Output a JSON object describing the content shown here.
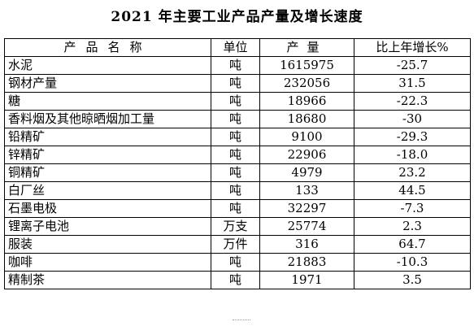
{
  "title": "2021 年主要工业产品产量及增长速度",
  "table": {
    "headers": {
      "product": "产品名称",
      "unit": "单位",
      "quantity": "产量",
      "growth": "比上年增长%"
    },
    "rows": [
      {
        "product": "水泥",
        "unit": "吨",
        "quantity": "1615975",
        "growth": "-25.7"
      },
      {
        "product": "钢材产量",
        "unit": "吨",
        "quantity": "232056",
        "growth": "31.5"
      },
      {
        "product": "糖",
        "unit": "吨",
        "quantity": "18966",
        "growth": "-22.3"
      },
      {
        "product": "香料烟及其他晾晒烟加工量",
        "unit": "吨",
        "quantity": "18680",
        "growth": "-30"
      },
      {
        "product": "铅精矿",
        "unit": "吨",
        "quantity": "9100",
        "growth": "-29.3"
      },
      {
        "product": "锌精矿",
        "unit": "吨",
        "quantity": "22906",
        "growth": "-18.0"
      },
      {
        "product": "铜精矿",
        "unit": "吨",
        "quantity": "4979",
        "growth": "23.2"
      },
      {
        "product": "白厂丝",
        "unit": "吨",
        "quantity": "133",
        "growth": "44.5"
      },
      {
        "product": "石墨电极",
        "unit": "吨",
        "quantity": "32297",
        "growth": "-7.3"
      },
      {
        "product": "锂离子电池",
        "unit": "万支",
        "quantity": "25774",
        "growth": "2.3"
      },
      {
        "product": "服装",
        "unit": "万件",
        "quantity": "316",
        "growth": "64.7"
      },
      {
        "product": "咖啡",
        "unit": "吨",
        "quantity": "21883",
        "growth": "-10.3"
      },
      {
        "product": "精制茶",
        "unit": "吨",
        "quantity": "1971",
        "growth": "3.5"
      }
    ]
  }
}
